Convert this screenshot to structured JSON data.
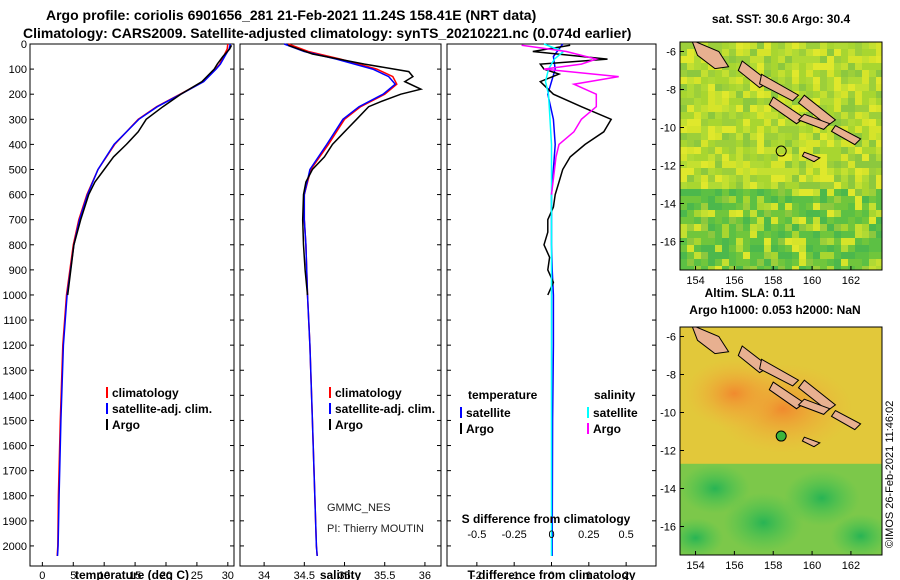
{
  "title_line1": "Argo profile: coriolis 6901656_281 21-Feb-2021 11.24S 158.41E (NRT data)",
  "title_line2": "Climatology: CARS2009. Satellite-adjusted climatology: synTS_20210221.nc (0.074d earlier)",
  "colors": {
    "climatology": "#ff0000",
    "satellite": "#0000ff",
    "argo": "#000000",
    "sal_satellite": "#00ffff",
    "sal_argo": "#ff00ff"
  },
  "chart_data": [
    {
      "id": "temperature",
      "type": "line",
      "xlabel": "temperature (deg C)",
      "xlim": [
        -2,
        31
      ],
      "ylim": [
        2080,
        0
      ],
      "xticks": [
        0,
        5,
        10,
        15,
        20,
        25,
        30
      ],
      "yticks": [
        0,
        100,
        200,
        300,
        400,
        500,
        600,
        700,
        800,
        900,
        1000,
        1100,
        1200,
        1300,
        1400,
        1500,
        1600,
        1700,
        1800,
        1900,
        2000
      ],
      "legend": [
        "climatology",
        "satellite-adj. clim.",
        "Argo"
      ],
      "series": [
        {
          "name": "climatology",
          "color": "#ff0000",
          "depth": [
            0,
            20,
            50,
            80,
            100,
            150,
            200,
            250,
            300,
            400,
            500,
            600,
            700,
            800,
            1000,
            1200,
            1500,
            1800,
            2000,
            2040
          ],
          "values": [
            30,
            29.9,
            29.3,
            28.7,
            28,
            26,
            22.3,
            18.5,
            15.5,
            11.7,
            9,
            7.2,
            5.9,
            5,
            3.9,
            3.3,
            2.9,
            2.6,
            2.5,
            2.4
          ]
        },
        {
          "name": "satellite-adj. clim.",
          "color": "#0000ff",
          "depth": [
            0,
            20,
            50,
            80,
            100,
            150,
            200,
            250,
            300,
            400,
            500,
            600,
            700,
            800,
            1000,
            1200,
            1500,
            1800,
            2000,
            2040
          ],
          "values": [
            30.4,
            30.2,
            29.5,
            28.8,
            28.1,
            26.1,
            22.4,
            18.6,
            15.6,
            11.6,
            9,
            7.3,
            6,
            5.1,
            4,
            3.4,
            3,
            2.7,
            2.55,
            2.45
          ]
        },
        {
          "name": "Argo",
          "color": "#000000",
          "depth": [
            5,
            20,
            50,
            80,
            100,
            150,
            200,
            250,
            300,
            350,
            400,
            450,
            500,
            550,
            600,
            700,
            800,
            900,
            1000
          ],
          "values": [
            30.6,
            30.3,
            29.2,
            28.3,
            27.8,
            25.8,
            22.4,
            19.5,
            16.8,
            15.5,
            13.6,
            11.5,
            10,
            8.5,
            7.5,
            6.2,
            5.1,
            4.6,
            4.1
          ]
        }
      ]
    },
    {
      "id": "salinity",
      "type": "line",
      "xlabel": "salinity",
      "xlim": [
        33.7,
        36.2
      ],
      "ylim": [
        2080,
        0
      ],
      "xticks": [
        34,
        34.5,
        35,
        35.5,
        36
      ],
      "legend": [
        "climatology",
        "satellite-adj. clim.",
        "Argo"
      ],
      "annotation_line1": "GMMC_NES",
      "annotation_line2": "PI: Thierry MOUTIN",
      "series": [
        {
          "name": "climatology",
          "color": "#ff0000",
          "depth": [
            0,
            30,
            60,
            100,
            130,
            160,
            200,
            250,
            300,
            400,
            500,
            600,
            700,
            800,
            1000,
            1200,
            1500,
            1800,
            2000,
            2040
          ],
          "values": [
            34.3,
            34.55,
            34.95,
            35.4,
            35.6,
            35.65,
            35.5,
            35.2,
            35,
            34.8,
            34.58,
            34.5,
            34.5,
            34.52,
            34.54,
            34.57,
            34.6,
            34.63,
            34.65,
            34.66
          ]
        },
        {
          "name": "satellite-adj. clim.",
          "color": "#0000ff",
          "depth": [
            0,
            30,
            60,
            100,
            130,
            160,
            200,
            250,
            300,
            400,
            500,
            600,
            700,
            800,
            1000,
            1200,
            1500,
            1800,
            2000,
            2040
          ],
          "values": [
            34.25,
            34.5,
            34.9,
            35.35,
            35.55,
            35.63,
            35.48,
            35.18,
            34.98,
            34.78,
            34.57,
            34.5,
            34.5,
            34.52,
            34.54,
            34.57,
            34.6,
            34.63,
            34.65,
            34.66
          ]
        },
        {
          "name": "Argo",
          "color": "#000000",
          "depth": [
            5,
            40,
            80,
            110,
            130,
            150,
            180,
            200,
            230,
            250,
            300,
            350,
            400,
            450,
            500,
            550,
            600,
            700,
            800,
            900,
            1000
          ],
          "values": [
            34.3,
            34.6,
            35.25,
            35.8,
            35.85,
            35.75,
            35.95,
            35.7,
            35.45,
            35.3,
            35.15,
            35,
            34.85,
            34.75,
            34.6,
            34.52,
            34.49,
            34.48,
            34.49,
            34.51,
            34.54
          ]
        }
      ]
    },
    {
      "id": "difference",
      "type": "line",
      "xlabel": "T difference from climatology",
      "xlabel2": "S difference from climatology",
      "xlim": [
        -2.8,
        2.8
      ],
      "ylim": [
        2080,
        0
      ],
      "xticks": [
        -2,
        -1,
        0,
        1,
        2
      ],
      "xticks2": [
        -0.5,
        -0.25,
        0,
        0.25,
        0.5
      ],
      "xticklabels2": [
        "-0.5",
        "-0.25",
        "0",
        "0.25",
        "0.5"
      ],
      "legend": {
        "temperature_heading": "temperature",
        "salinity_heading": "salinity",
        "satellite": "satellite",
        "argo": "Argo"
      },
      "series": [
        {
          "name": "T satellite",
          "color": "#0000ff",
          "depth": [
            0,
            50,
            100,
            200,
            300,
            400,
            500,
            600,
            700,
            800,
            900,
            1000,
            1200,
            1500,
            2000,
            2040
          ],
          "values": [
            0.3,
            0.05,
            0.1,
            -0.1,
            0.05,
            0.1,
            0.05,
            0,
            0,
            0,
            0.02,
            0.05,
            0.05,
            0.03,
            0.02,
            0.02
          ]
        },
        {
          "name": "T Argo",
          "color": "#000000",
          "depth": [
            5,
            30,
            60,
            80,
            100,
            120,
            150,
            200,
            250,
            300,
            350,
            400,
            450,
            500,
            550,
            600,
            650,
            700,
            750,
            800,
            850,
            900,
            950,
            1000
          ],
          "values": [
            0.5,
            -0.5,
            1.5,
            -0.3,
            -0.2,
            0.2,
            -0.3,
            0.05,
            0.8,
            1.6,
            1.4,
            0.9,
            0.5,
            0.3,
            0.2,
            0.1,
            0.05,
            -0.1,
            -0.1,
            -0.2,
            -0.05,
            -0.1,
            0.05,
            -0.1
          ]
        },
        {
          "name": "S satellite",
          "color": "#00ffff",
          "depth": [
            0,
            30,
            60,
            100,
            150,
            200,
            300,
            400,
            500,
            600,
            700,
            800,
            1000,
            1500,
            2000,
            2040
          ],
          "values": [
            -0.05,
            0.08,
            0.02,
            -0.02,
            -0.04,
            -0.02,
            -0.01,
            0,
            0,
            0,
            0,
            0,
            0,
            0,
            0,
            0
          ]
        },
        {
          "name": "S Argo",
          "color": "#ff00ff",
          "depth": [
            5,
            30,
            60,
            80,
            100,
            130,
            160,
            200,
            250,
            300,
            350,
            400,
            450,
            500,
            550,
            600
          ],
          "values": [
            -0.2,
            0.1,
            0.3,
            0.2,
            -0.05,
            0.45,
            0.15,
            0.3,
            0.3,
            0.2,
            0.15,
            0.05,
            0.03,
            0.02,
            0.01,
            0.0
          ]
        }
      ]
    },
    {
      "id": "sst_map",
      "type": "heatmap",
      "title": "sat. SST: 30.6 Argo: 30.4",
      "xlim": [
        153.2,
        163.6
      ],
      "ylim": [
        -17.5,
        -5.5
      ],
      "xticks": [
        154,
        156,
        158,
        160,
        162
      ],
      "yticks": [
        -6,
        -8,
        -10,
        -12,
        -14,
        -16
      ],
      "marker": {
        "lon": 158.41,
        "lat": -11.24
      }
    },
    {
      "id": "sla_map",
      "type": "heatmap",
      "title_line1": "Altim. SLA: 0.11",
      "title_line2": "Argo h1000: 0.053 h2000: NaN",
      "xlim": [
        153.2,
        163.6
      ],
      "ylim": [
        -17.5,
        -5.5
      ],
      "xticks": [
        154,
        156,
        158,
        160,
        162
      ],
      "yticks": [
        -6,
        -8,
        -10,
        -12,
        -14,
        -16
      ],
      "marker": {
        "lon": 158.41,
        "lat": -11.24
      }
    }
  ],
  "footer": "©IMOS 26-Feb-2021 11:46:02"
}
